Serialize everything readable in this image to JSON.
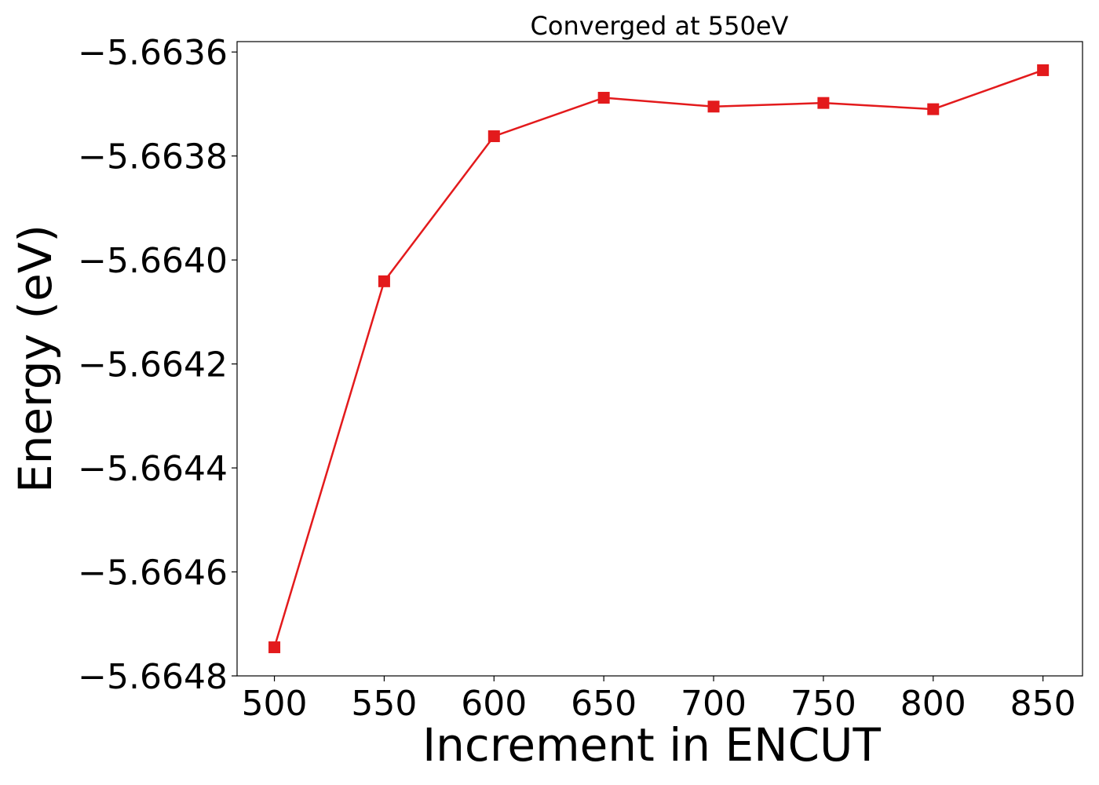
{
  "chart_data": {
    "type": "line",
    "title": "Converged at 550eV",
    "xlabel": "Increment in ENCUT",
    "ylabel": "Energy (eV)",
    "x_ticks": [
      500,
      550,
      600,
      650,
      700,
      750,
      800,
      850
    ],
    "x_tick_labels": [
      "500",
      "550",
      "600",
      "650",
      "700",
      "750",
      "800",
      "850"
    ],
    "y_ticks": [
      -5.6648,
      -5.6646,
      -5.6644,
      -5.6642,
      -5.664,
      -5.6638,
      -5.6636
    ],
    "y_tick_labels": [
      "−5.6648",
      "−5.6646",
      "−5.6644",
      "−5.6642",
      "−5.6640",
      "−5.6638",
      "−5.6636"
    ],
    "xlim": [
      483,
      868
    ],
    "ylim": [
      -5.6648,
      -5.66358
    ],
    "grid": false,
    "series": [
      {
        "marker": "square",
        "color": "#e31a1c",
        "x": [
          500,
          550,
          600,
          650,
          700,
          750,
          800,
          850
        ],
        "y": [
          -5.664745,
          -5.664041,
          -5.663762,
          -5.663688,
          -5.663705,
          -5.663698,
          -5.66371,
          -5.663635
        ]
      }
    ]
  }
}
